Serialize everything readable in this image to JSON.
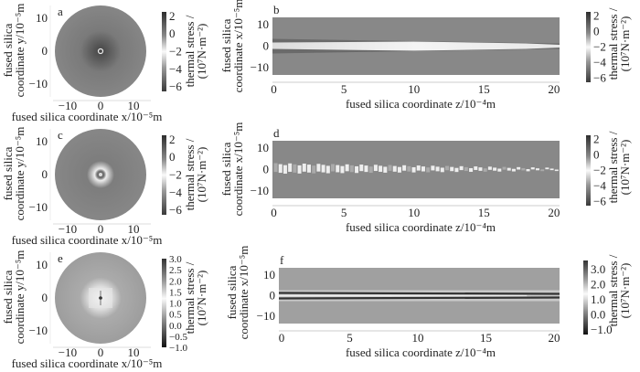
{
  "chart_data": [
    {
      "id": "a",
      "type": "heatmap",
      "label": "a",
      "shape": "circular cross-section",
      "xlabel": "fused  silica coordinate x/10⁻⁵m",
      "ylabel_lines": [
        "fused  silica",
        "coordinate y/10⁻⁵m"
      ],
      "xticks": [
        "−10",
        "0",
        "10"
      ],
      "xtick_values": [
        -10,
        0,
        10
      ],
      "yticks": [
        "10",
        "0",
        "−10"
      ],
      "ytick_values": [
        10,
        0,
        -10
      ],
      "xlim": [
        -19,
        19
      ],
      "ylim": [
        -19,
        19
      ],
      "colorbar": {
        "title_lines": [
          "thermal stress /",
          "(10⁷N·m⁻²)"
        ],
        "ticks": [
          "2",
          "0",
          "−2",
          "−4",
          "−6"
        ],
        "tick_values": [
          2,
          0,
          -2,
          -4,
          -6
        ],
        "range": [
          -6.5,
          2.5
        ]
      },
      "pattern": "dark compressive zone around center with small bright core"
    },
    {
      "id": "b",
      "type": "heatmap",
      "label": "b",
      "shape": "longitudinal section",
      "xlabel": "fused  silica coordinate z/10⁻⁴m",
      "ylabel_lines": [
        "fused  silica",
        "coordinate x/10⁻⁵m"
      ],
      "xticks": [
        "0",
        "5",
        "10",
        "15",
        "20"
      ],
      "xtick_values": [
        0,
        5,
        10,
        15,
        20
      ],
      "yticks": [
        "10",
        "0",
        "−10"
      ],
      "ytick_values": [
        10,
        0,
        -10
      ],
      "xlim": [
        -0.1,
        20.4
      ],
      "ylim": [
        -13.5,
        13.5
      ],
      "colorbar": {
        "title_lines": [
          "thermal stress /",
          "(10⁷N·m⁻²)"
        ],
        "ticks": [
          "2",
          "0",
          "−2",
          "−4",
          "−6"
        ],
        "tick_values": [
          2,
          0,
          -2,
          -4,
          -6
        ],
        "range": [
          -6.5,
          2.5
        ]
      },
      "pattern": "bright band along axis, narrowing with z"
    },
    {
      "id": "c",
      "type": "heatmap",
      "label": "c",
      "shape": "circular cross-section",
      "xlabel": "fused  silica coordinate x/10⁻⁵m",
      "ylabel_lines": [
        "fused  silica",
        "coordinate y/10⁻⁵m"
      ],
      "xticks": [
        "−10",
        "0",
        "10"
      ],
      "xtick_values": [
        -10,
        0,
        10
      ],
      "yticks": [
        "10",
        "0",
        "−10"
      ],
      "ytick_values": [
        10,
        0,
        -10
      ],
      "xlim": [
        -19,
        19
      ],
      "ylim": [
        -19,
        19
      ],
      "colorbar": {
        "title_lines": [
          "thermal stress /",
          "(10⁷N·m⁻²)"
        ],
        "ticks": [
          "2",
          "0",
          "−2",
          "−4",
          "−6"
        ],
        "tick_values": [
          2,
          0,
          -2,
          -4,
          -6
        ],
        "range": [
          -6.5,
          2.5
        ]
      },
      "pattern": "bright ring around dark center"
    },
    {
      "id": "d",
      "type": "heatmap",
      "label": "d",
      "shape": "longitudinal section",
      "xlabel": "fused  silica coordinate z/10⁻⁴m",
      "ylabel_lines": [
        "fused  silica",
        "coordinate x/10⁻⁵m"
      ],
      "xticks": [
        "0",
        "5",
        "10",
        "15",
        "20"
      ],
      "xtick_values": [
        0,
        5,
        10,
        15,
        20
      ],
      "yticks": [
        "10",
        "0",
        "−10"
      ],
      "ytick_values": [
        10,
        0,
        -10
      ],
      "xlim": [
        -0.1,
        20.4
      ],
      "ylim": [
        -13.5,
        13.5
      ],
      "colorbar": {
        "title_lines": [
          "thermal stress /",
          "(10⁷N·m⁻²)"
        ],
        "ticks": [
          "2",
          "0",
          "−2",
          "−4",
          "−6"
        ],
        "tick_values": [
          2,
          0,
          -2,
          -4,
          -6
        ],
        "range": [
          -6.5,
          2.5
        ]
      },
      "pattern": "fragmented bright band along axis"
    },
    {
      "id": "e",
      "type": "heatmap",
      "label": "e",
      "shape": "circular cross-section",
      "xlabel": "fused  silica coordinate x/10⁻⁵m",
      "ylabel_lines": [
        "fused  silica",
        "coordinate y/10⁻⁵m"
      ],
      "xticks": [
        "−10",
        "0",
        "10"
      ],
      "xtick_values": [
        -10,
        0,
        10
      ],
      "yticks": [
        "10",
        "0",
        "−10"
      ],
      "ytick_values": [
        10,
        0,
        -10
      ],
      "xlim": [
        -19,
        19
      ],
      "ylim": [
        -19,
        19
      ],
      "colorbar": {
        "title_lines": [
          "thermal stress /",
          "(10⁷N·m⁻²)"
        ],
        "ticks": [
          "3.0",
          "2.5",
          "2.0",
          "1.5",
          "1.0",
          "0.5",
          "0.0",
          "−0.5",
          "−1.0"
        ],
        "tick_values": [
          3,
          2.5,
          2,
          1.5,
          1,
          0.5,
          0,
          -0.5,
          -1
        ],
        "range": [
          -1,
          3
        ]
      },
      "pattern": "bright tensile zone around center with dark core"
    },
    {
      "id": "f",
      "type": "heatmap",
      "label": "f",
      "shape": "longitudinal section",
      "xlabel": "fused  silica coordinate z/10⁻⁴m",
      "ylabel_lines": [
        "fused  silica",
        "coordinate x/10⁻⁵m"
      ],
      "xticks": [
        "0",
        "5",
        "10",
        "15",
        "20"
      ],
      "xtick_values": [
        0,
        5,
        10,
        15,
        20
      ],
      "yticks": [
        "10",
        "0",
        "−10"
      ],
      "ytick_values": [
        10,
        0,
        -10
      ],
      "xlim": [
        -0.2,
        20.4
      ],
      "ylim": [
        -13.5,
        13.5
      ],
      "colorbar": {
        "title_lines": [
          "thermal stress /",
          "(10⁷N·m⁻²)"
        ],
        "ticks": [
          "3.0",
          "2.0",
          "1.0",
          "0.0",
          "−1.0"
        ],
        "tick_values": [
          3,
          2,
          1,
          0,
          -1
        ],
        "range": [
          -1.3,
          3.6
        ]
      },
      "pattern": "dark double lines with bright core along axis"
    }
  ]
}
